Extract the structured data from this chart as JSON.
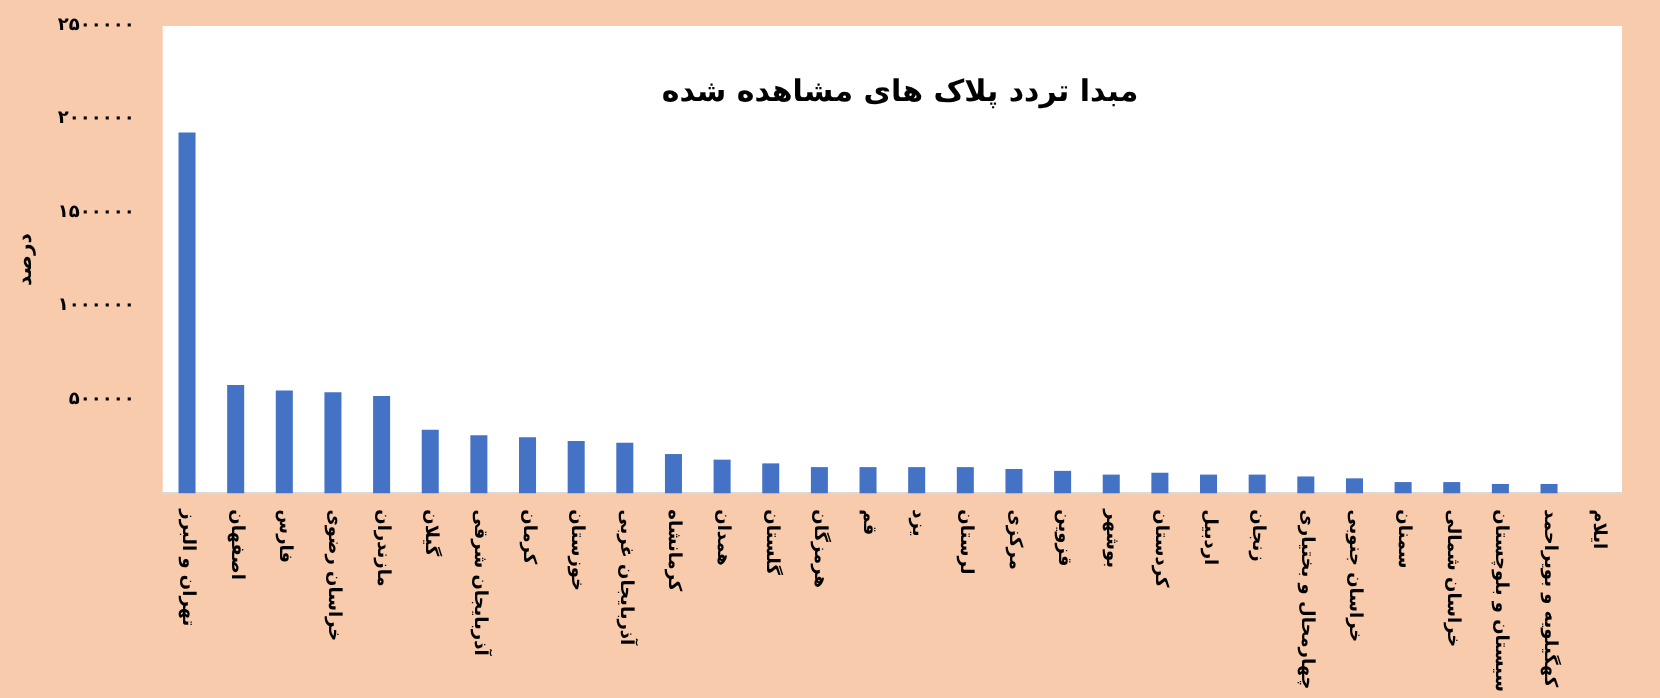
{
  "chart_data": {
    "type": "bar",
    "title": "مبدا تردد پلاک های مشاهده شده",
    "ylabel": "درصد",
    "categories": [
      "تهران و البرز",
      "اصفهان",
      "فارس",
      "خراسان رضوی",
      "مازندران",
      "گیلان",
      "آذربایجان شرقی",
      "کرمان",
      "خوزستان",
      "آذربایجان غربی",
      "کرمانشاه",
      "همدان",
      "گلستان",
      "هرمزگان",
      "قم",
      "یزد",
      "لرستان",
      "مرکزی",
      "قزوین",
      "بوشهر",
      "کردستان",
      "اردبیل",
      "زنجان",
      "چهارمحال و بختیاری",
      "خراسان جنوبی",
      "سمنان",
      "خراسان شمالی",
      "سیستان و بلوچستان",
      "کهگیلویه و بویراحمد",
      "ایلام"
    ],
    "values": [
      1930000,
      580000,
      550000,
      540000,
      520000,
      340000,
      310000,
      300000,
      280000,
      270000,
      210000,
      180000,
      160000,
      140000,
      140000,
      140000,
      140000,
      130000,
      120000,
      100000,
      110000,
      100000,
      100000,
      90000,
      80000,
      60000,
      60000,
      50000,
      50000,
      0
    ],
    "color": "#4472c4",
    "ylim": [
      0,
      2500000
    ],
    "yticks": [
      {
        "value": 500000,
        "label": "۵۰۰۰۰۰"
      },
      {
        "value": 1000000,
        "label": "۱۰۰۰۰۰۰"
      },
      {
        "value": 1500000,
        "label": "۱۵۰۰۰۰۰"
      },
      {
        "value": 2000000,
        "label": "۲۰۰۰۰۰۰"
      },
      {
        "value": 2500000,
        "label": "۲۵۰۰۰۰۰"
      }
    ],
    "grid": false
  }
}
